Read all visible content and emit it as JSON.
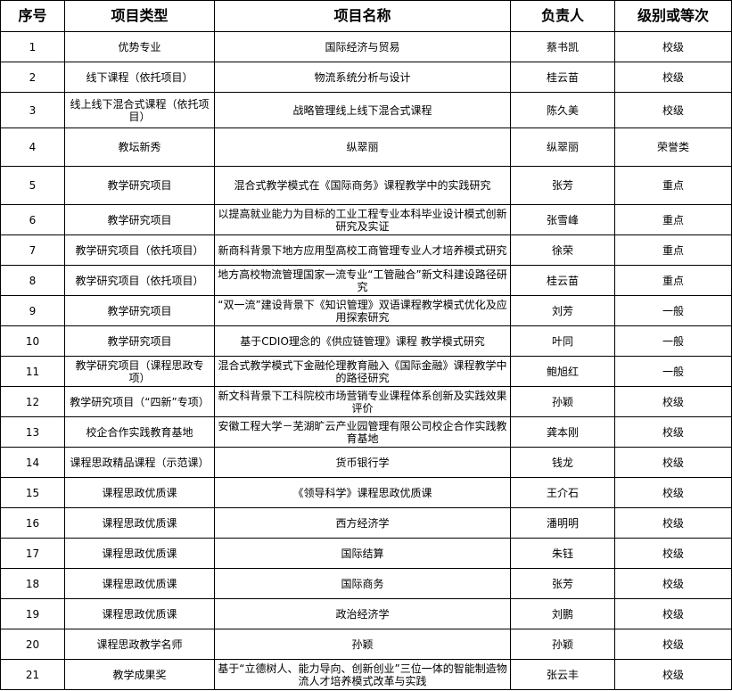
{
  "headers": [
    "序号",
    "项目类型",
    "项目名称",
    "负责人",
    "级别或等次"
  ],
  "rows": [
    [
      "1",
      "优势专业",
      "国际经济与贸易",
      "蔡书凯",
      "校级"
    ],
    [
      "2",
      "线下课程（依托项目）",
      "物流系统分析与设计",
      "桂云苗",
      "校级"
    ],
    [
      "3",
      "线上线下混合式课程（依托项目）",
      "战略管理线上线下混合式课程",
      "陈久美",
      "校级"
    ],
    [
      "4",
      "教坛新秀",
      "纵翠丽",
      "纵翠丽",
      "荣誉类"
    ],
    [
      "5",
      "教学研究项目",
      "混合式教学模式在《国际商务》课程教学中的实践研究",
      "张芳",
      "重点"
    ],
    [
      "6",
      "教学研究项目",
      "以提高就业能力为目标的工业工程专业本科毕业设计模式创新研究及实证",
      "张雪峰",
      "重点"
    ],
    [
      "7",
      "教学研究项目（依托项目）",
      "新商科背景下地方应用型高校工商管理专业人才培养模式研究",
      "徐荣",
      "重点"
    ],
    [
      "8",
      "教学研究项目（依托项目）",
      "地方高校物流管理国家一流专业“工管融合”新文科建设路径研究",
      "桂云苗",
      "重点"
    ],
    [
      "9",
      "教学研究项目",
      "“双一流”建设背景下《知识管理》双语课程教学模式优化及应用探索研究",
      "刘芳",
      "一般"
    ],
    [
      "10",
      "教学研究项目",
      "基于CDIO理念的《供应链管理》课程  教学模式研究",
      "叶同",
      "一般"
    ],
    [
      "11",
      "教学研究项目（课程思政专项）",
      "混合式教学模式下金融伦理教育融入《国际金融》课程教学中的路径研究",
      "鲍旭红",
      "一般"
    ],
    [
      "12",
      "教学研究项目（“四新”专项）",
      "新文科背景下工科院校市场营销专业课程体系创新及实践效果评价",
      "孙颖",
      "校级"
    ],
    [
      "13",
      "校企合作实践教育基地",
      "安徽工程大学－芜湖旷云产业园管理有限公司校企合作实践教育基地",
      "龚本刚",
      "校级"
    ],
    [
      "14",
      "课程思政精品课程（示范课）",
      "货币银行学",
      "钱龙",
      "校级"
    ],
    [
      "15",
      "课程思政优质课",
      "《领导科学》课程思政优质课",
      "王介石",
      "校级"
    ],
    [
      "16",
      "课程思政优质课",
      "西方经济学",
      "潘明明",
      "校级"
    ],
    [
      "17",
      "课程思政优质课",
      "国际结算",
      "朱钰",
      "校级"
    ],
    [
      "18",
      "课程思政优质课",
      "国际商务",
      "张芳",
      "校级"
    ],
    [
      "19",
      "课程思政优质课",
      "政治经济学",
      "刘鹏",
      "校级"
    ],
    [
      "20",
      "课程思政教学名师",
      "孙颖",
      "孙颖",
      "校级"
    ],
    [
      "21",
      "教学成果奖",
      "基于“立德树人、能力导向、创新创业”三位一体的智能制造物流人才培养模式改革与实践",
      "张云丰",
      "校级"
    ]
  ]
}
